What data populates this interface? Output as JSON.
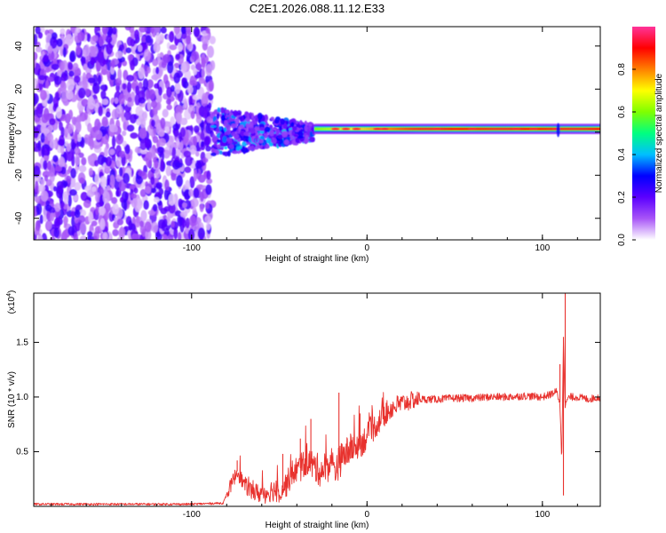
{
  "title": "C2E1.2026.088.11.12.E33",
  "chart_data": [
    {
      "type": "heatmap",
      "title": "C2E1.2026.088.11.12.E33",
      "xlabel": "Height of straight line (km)",
      "ylabel": "Frequency (Hz)",
      "xlim": [
        -190,
        133
      ],
      "ylim": [
        -50,
        49
      ],
      "xticks": [
        -100,
        0,
        100
      ],
      "xtick_labels": [
        "-100",
        "0",
        "100"
      ],
      "yticks": [
        -40,
        -20,
        0,
        20,
        40
      ],
      "ytick_labels": [
        "-40",
        "-20",
        "0",
        "20",
        "40"
      ],
      "regions": [
        {
          "x": [
            -190,
            -88
          ],
          "description_value": "broadband noise",
          "amplitude": 0.15,
          "freq_span": [
            -50,
            49
          ]
        },
        {
          "x": [
            -88,
            -30
          ],
          "amplitude": 0.35,
          "freq_span": [
            -15,
            10
          ]
        },
        {
          "x": [
            -30,
            133
          ],
          "amplitude": 0.95,
          "freq_center": 1.5,
          "freq_width": 4
        }
      ],
      "colorbar": {
        "label": "Normalized spectral amplitude",
        "range": [
          0.0,
          1.0
        ],
        "ticks": [
          0.0,
          0.2,
          0.4,
          0.6,
          0.8
        ],
        "tick_labels": [
          "0.0",
          "0.2",
          "0.4",
          "0.6",
          "0.8"
        ],
        "colors": [
          "#ffffff",
          "#a855f7",
          "#5b00ff",
          "#0000ff",
          "#00bfff",
          "#00ff80",
          "#7fff00",
          "#ffff00",
          "#ff8000",
          "#ff0000",
          "#ff3399"
        ]
      }
    },
    {
      "type": "line",
      "xlabel": "Height of straight line (km)",
      "ylabel": "SNR (10 * v/v)",
      "multiplier_label": "(x10",
      "multiplier_exp": "4",
      "multiplier_close": ")",
      "xlim": [
        -190,
        133
      ],
      "ylim": [
        0,
        1.95
      ],
      "xticks": [
        -100,
        0,
        100
      ],
      "xtick_labels": [
        "-100",
        "0",
        "100"
      ],
      "yticks": [
        0.5,
        1.0,
        1.5
      ],
      "ytick_labels": [
        "0.5",
        "1.0",
        "1.5"
      ],
      "color": "#e8322e",
      "series": [
        {
          "name": "SNR",
          "x": [
            -190,
            -150,
            -100,
            -82,
            -78,
            -74,
            -70,
            -66,
            -62,
            -58,
            -54,
            -50,
            -46,
            -42,
            -38,
            -34,
            -30,
            -26,
            -22,
            -18,
            -14,
            -10,
            -6,
            -2,
            2,
            6,
            10,
            14,
            18,
            22,
            26,
            30,
            40,
            50,
            60,
            70,
            80,
            90,
            100,
            104,
            108,
            110,
            111,
            112,
            113,
            114,
            116,
            120,
            126,
            133
          ],
          "values": [
            0.02,
            0.02,
            0.02,
            0.03,
            0.18,
            0.32,
            0.2,
            0.14,
            0.12,
            0.12,
            0.15,
            0.14,
            0.2,
            0.32,
            0.35,
            0.42,
            0.36,
            0.32,
            0.38,
            0.35,
            0.45,
            0.52,
            0.55,
            0.6,
            0.68,
            0.76,
            0.84,
            0.9,
            0.93,
            0.95,
            0.97,
            0.98,
            0.98,
            0.99,
            0.99,
            1.0,
            1.0,
            1.01,
            1.0,
            1.02,
            1.05,
            0.95,
            0.4,
            1.55,
            0.9,
            0.98,
            1.0,
            1.0,
            0.98,
            1.0
          ]
        }
      ],
      "spikes": [
        {
          "x": -74,
          "value": 0.42
        },
        {
          "x": -48,
          "value": 0.48
        },
        {
          "x": -38,
          "value": 0.62
        },
        {
          "x": -32,
          "value": 0.8
        },
        {
          "x": -16,
          "value": 1.04
        },
        {
          "x": -4,
          "value": 0.85
        },
        {
          "x": 110,
          "value": 1.3
        },
        {
          "x": 112,
          "value": 0.1
        },
        {
          "x": 113,
          "value": 1.95
        }
      ]
    }
  ]
}
